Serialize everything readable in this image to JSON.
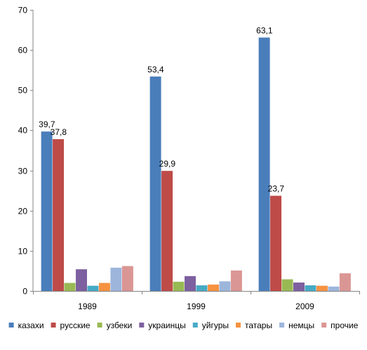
{
  "chart_data": {
    "type": "bar",
    "categories": [
      "1989",
      "1999",
      "2009"
    ],
    "ylim": [
      0,
      70
    ],
    "y_ticks": [
      0,
      10,
      20,
      30,
      40,
      50,
      60,
      70
    ],
    "grid": false,
    "legend_position": "bottom",
    "series": [
      {
        "name": "казахи",
        "color": "#4A7EBB",
        "values": [
          39.7,
          53.4,
          63.1
        ],
        "labels": [
          "39,7",
          "53,4",
          "63,1"
        ]
      },
      {
        "name": "русские",
        "color": "#BE4B48",
        "values": [
          37.8,
          29.9,
          23.7
        ],
        "labels": [
          "37,8",
          "29,9",
          "23,7"
        ]
      },
      {
        "name": "узбеки",
        "color": "#98B954",
        "values": [
          2.0,
          2.3,
          2.9
        ],
        "labels": null
      },
      {
        "name": "украинцы",
        "color": "#7D60A0",
        "values": [
          5.4,
          3.7,
          2.1
        ],
        "labels": null
      },
      {
        "name": "уйгуры",
        "color": "#46AAC5",
        "values": [
          1.3,
          1.4,
          1.4
        ],
        "labels": null
      },
      {
        "name": "татары",
        "color": "#F69240",
        "values": [
          2.0,
          1.6,
          1.3
        ],
        "labels": null
      },
      {
        "name": "немцы",
        "color": "#9DB5DB",
        "values": [
          5.8,
          2.4,
          1.1
        ],
        "labels": null
      },
      {
        "name": "прочие",
        "color": "#DA9694",
        "values": [
          6.2,
          5.1,
          4.4
        ],
        "labels": null
      }
    ]
  }
}
